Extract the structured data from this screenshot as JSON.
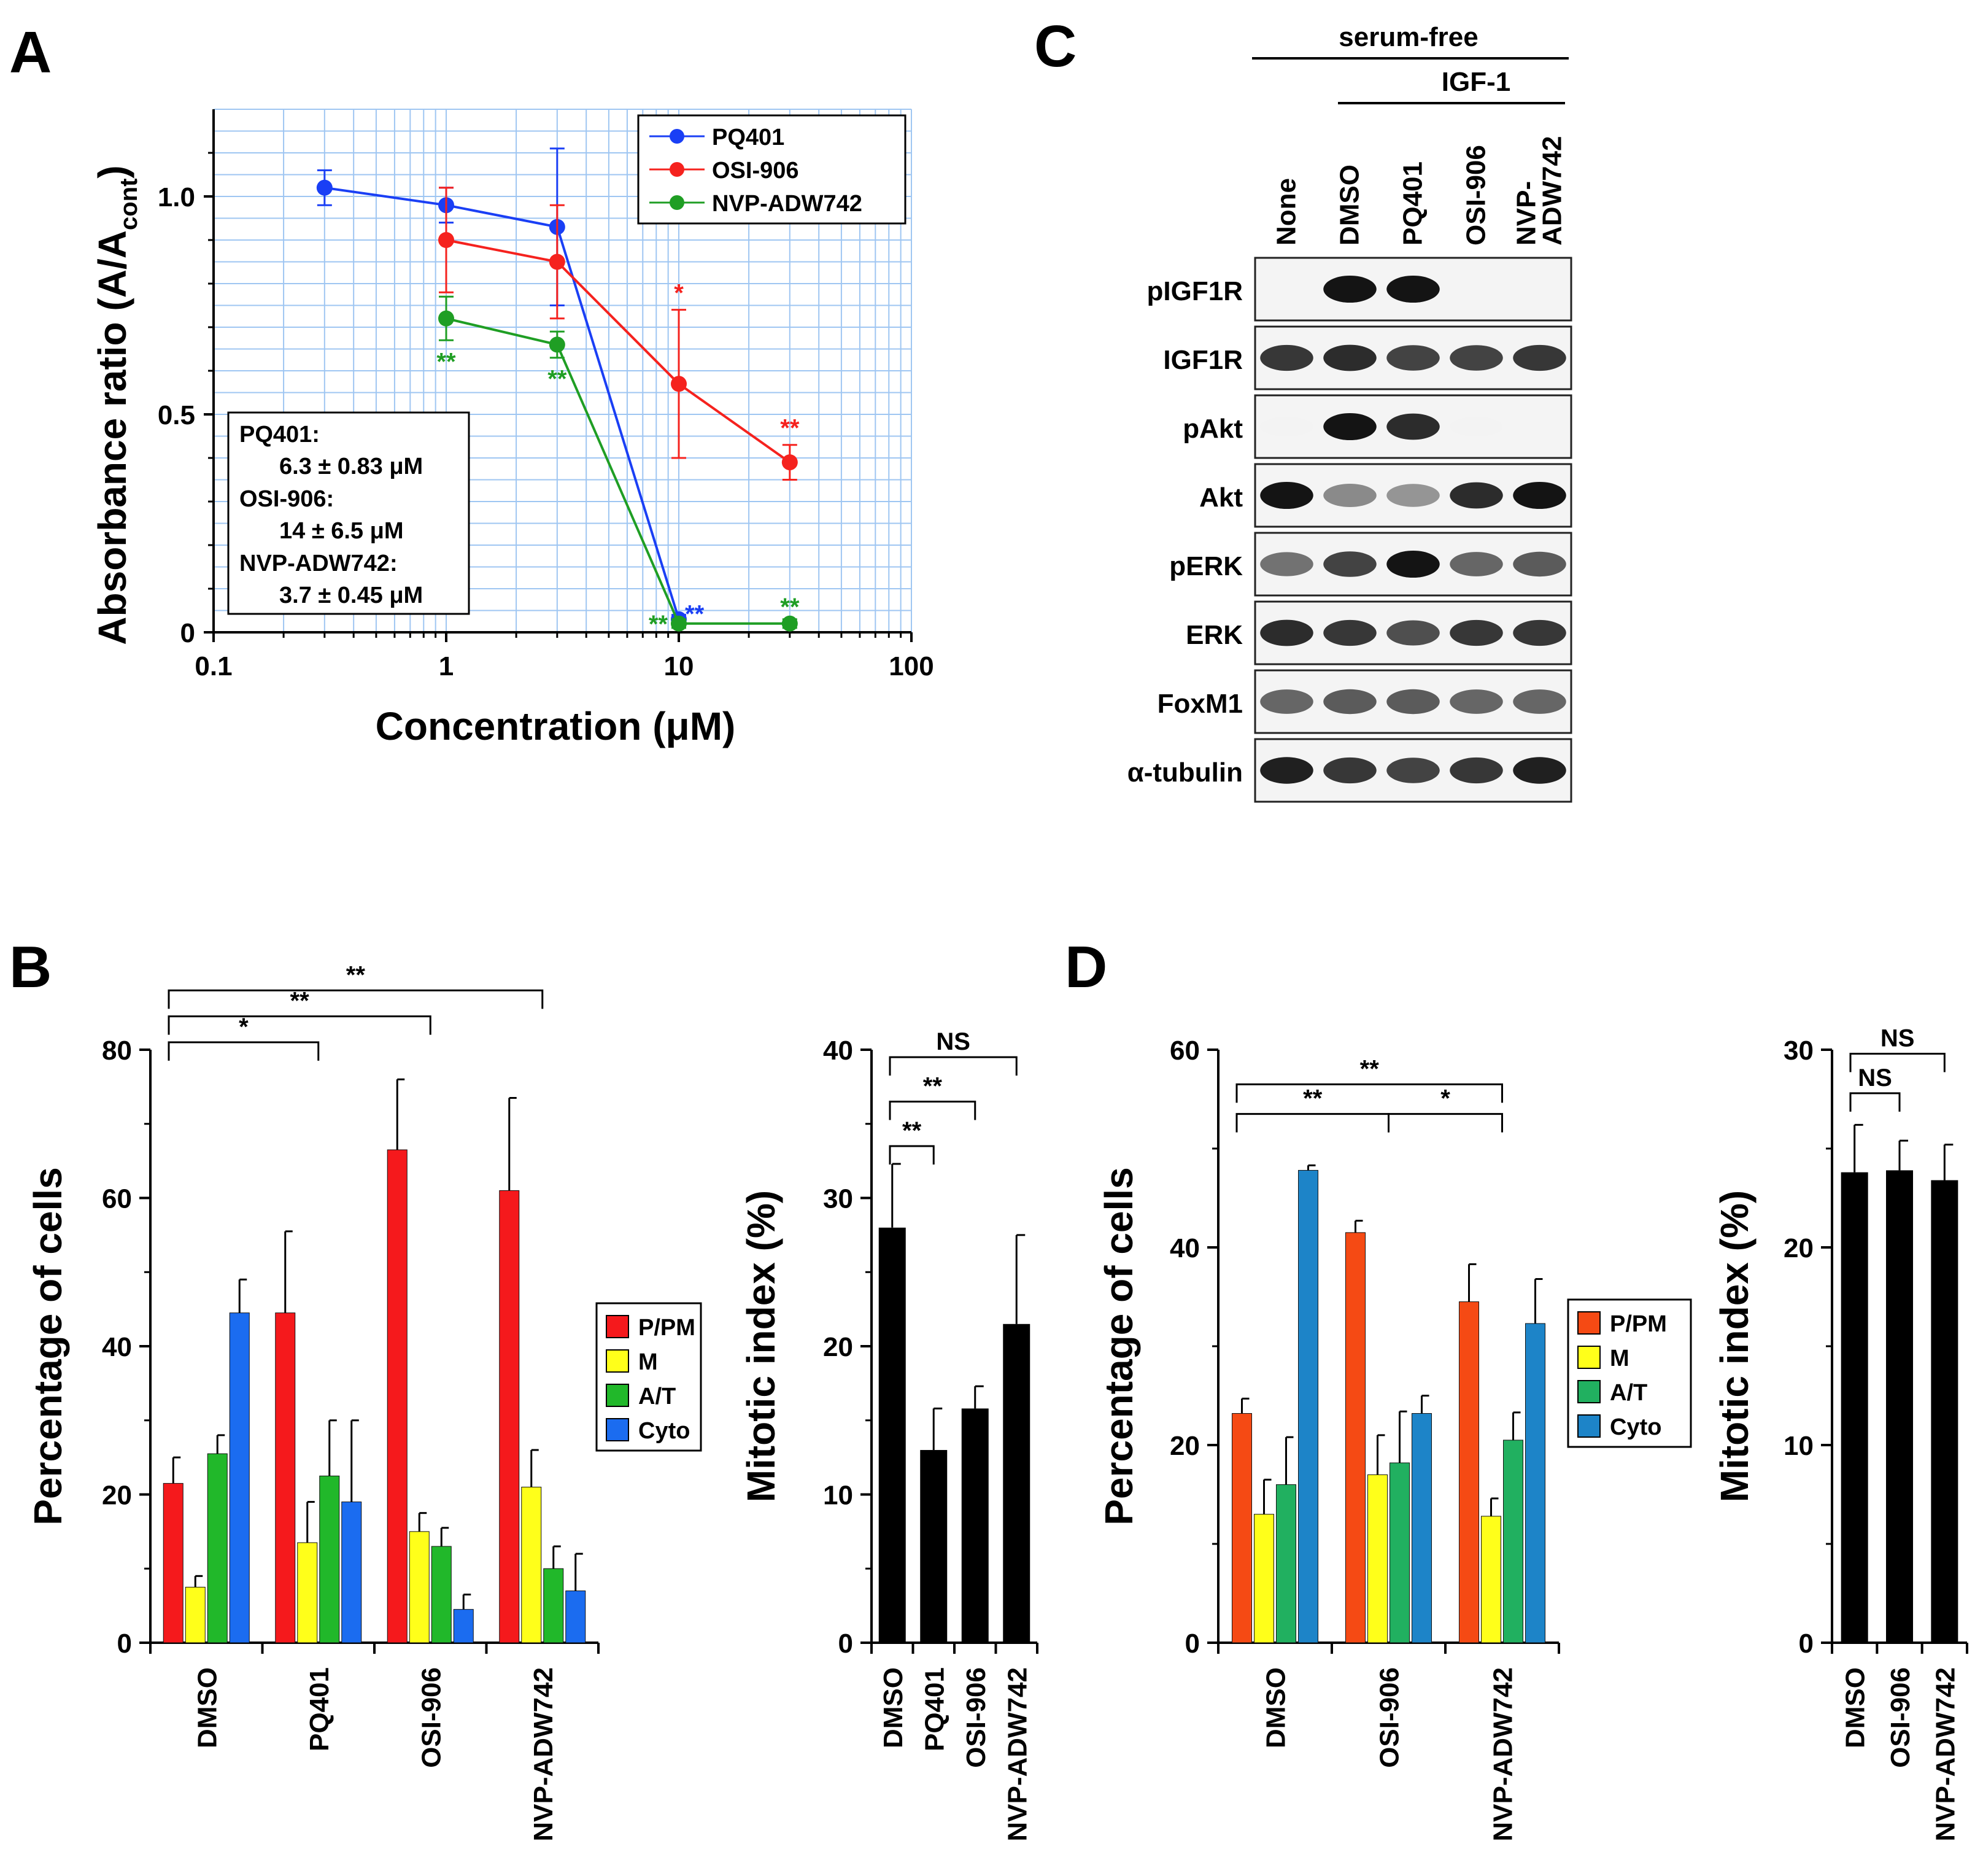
{
  "panels": {
    "A": "A",
    "B": "B",
    "C": "C",
    "D": "D"
  },
  "chart_data": [
    {
      "id": "A",
      "type": "line",
      "xscale": "log",
      "xlabel": "Concentration (μM)",
      "ylabel_main": "Absorbance ratio (A/A",
      "ylabel_sub": "cont",
      "ylabel_end": ")",
      "xlim": [
        0.1,
        100
      ],
      "ylim": [
        0,
        1.2
      ],
      "xticks": [
        {
          "value": 0.1,
          "label": "0.1"
        },
        {
          "value": 1,
          "label": "1"
        },
        {
          "value": 10,
          "label": "10"
        },
        {
          "value": 100,
          "label": "100"
        }
      ],
      "yticks": [
        {
          "value": 0,
          "label": "0"
        },
        {
          "value": 0.5,
          "label": "0.5"
        },
        {
          "value": 1.0,
          "label": "1.0"
        }
      ],
      "grid": true,
      "legend_position": "top-right",
      "series": [
        {
          "name": "PQ401",
          "color": "#1a3ff5",
          "x": [
            0.3,
            1,
            3,
            10
          ],
          "y": [
            1.02,
            0.98,
            0.93,
            0.03
          ],
          "err": [
            0.04,
            0.04,
            0.18,
            0.01
          ],
          "sig": [
            {
              "x": 10,
              "y": 0.03,
              "text": "**"
            }
          ]
        },
        {
          "name": "OSI-906",
          "color": "#f5221e",
          "x": [
            1,
            3,
            10,
            30
          ],
          "y": [
            0.9,
            0.85,
            0.57,
            0.39
          ],
          "err": [
            0.12,
            0.13,
            0.17,
            0.04
          ],
          "sig": [
            {
              "x": 10,
              "y": 0.74,
              "text": "*"
            },
            {
              "x": 30,
              "y": 0.43,
              "text": "**"
            }
          ]
        },
        {
          "name": "NVP-ADW742",
          "color": "#1f9e24",
          "x": [
            1,
            3,
            10,
            30
          ],
          "y": [
            0.72,
            0.66,
            0.02,
            0.02
          ],
          "err": [
            0.05,
            0.03,
            0.01,
            0.01
          ],
          "sig": [
            {
              "x": 1,
              "y": 0.67,
              "text": "**"
            },
            {
              "x": 3,
              "y": 0.63,
              "text": "**"
            },
            {
              "x": 10,
              "y": 0.02,
              "text": "**"
            },
            {
              "x": 30,
              "y": 0.02,
              "text": "**"
            }
          ]
        }
      ],
      "annotation": [
        "PQ401:",
        "6.3 ± 0.83 μM",
        "OSI-906:",
        "14 ± 6.5 μM",
        "NVP-ADW742:",
        "3.7 ± 0.45 μM"
      ]
    },
    {
      "id": "B-left",
      "type": "bar",
      "ylabel": "Percentage of cells",
      "ylim": [
        0,
        80
      ],
      "yticks": [
        0,
        20,
        40,
        60,
        80
      ],
      "categories": [
        "DMSO",
        "PQ401",
        "OSI-906",
        "NVP-ADW742"
      ],
      "series": [
        {
          "name": "P/PM",
          "color": "#f5191c",
          "values": [
            21.5,
            44.5,
            66.5,
            61
          ],
          "err": [
            3.5,
            11,
            9.5,
            12.5
          ]
        },
        {
          "name": "M",
          "color": "#ffff1a",
          "values": [
            7.5,
            13.5,
            15,
            21
          ],
          "err": [
            1.5,
            5.5,
            2.5,
            5
          ]
        },
        {
          "name": "A/T",
          "color": "#21b82a",
          "values": [
            25.5,
            22.5,
            13,
            10
          ],
          "err": [
            2.5,
            7.5,
            2.5,
            3
          ]
        },
        {
          "name": "Cyto",
          "color": "#1b6cf0",
          "values": [
            44.5,
            19,
            4.5,
            7
          ],
          "err": [
            4.5,
            11,
            2,
            5
          ]
        }
      ],
      "legend_position": "right",
      "brackets": [
        {
          "from": 0,
          "to": 1,
          "y": 81,
          "text": "*"
        },
        {
          "from": 0,
          "to": 2,
          "y": 84.5,
          "text": "**"
        },
        {
          "from": 0,
          "to": 3,
          "y": 88,
          "text": "**"
        }
      ]
    },
    {
      "id": "B-right",
      "type": "bar",
      "ylabel": "Mitotic index (%)",
      "ylim": [
        0,
        40
      ],
      "yticks": [
        0,
        10,
        20,
        30,
        40
      ],
      "categories": [
        "DMSO",
        "PQ401",
        "OSI-906",
        "NVP-ADW742"
      ],
      "values": [
        28,
        13,
        15.8,
        21.5
      ],
      "err": [
        4.3,
        2.8,
        1.5,
        6
      ],
      "color": "#000000",
      "brackets": [
        {
          "from": 0,
          "to": 1,
          "y": 33.5,
          "text": "**"
        },
        {
          "from": 0,
          "to": 2,
          "y": 36.5,
          "text": "**"
        },
        {
          "from": 0,
          "to": 3,
          "y": 39.5,
          "text": "NS"
        }
      ]
    },
    {
      "id": "D-left",
      "type": "bar",
      "ylabel": "Percentage of cells",
      "ylim": [
        0,
        60
      ],
      "yticks": [
        0,
        20,
        40,
        60
      ],
      "categories": [
        "DMSO",
        "OSI-906",
        "NVP-ADW742"
      ],
      "series": [
        {
          "name": "P/PM",
          "color": "#f54a14",
          "values": [
            23.2,
            41.5,
            34.5
          ],
          "err": [
            1.5,
            1.2,
            3.8
          ]
        },
        {
          "name": "M",
          "color": "#ffff1a",
          "values": [
            13,
            17,
            12.8
          ],
          "err": [
            3.5,
            4,
            1.8
          ]
        },
        {
          "name": "A/T",
          "color": "#21b060",
          "values": [
            16,
            18.2,
            20.5
          ],
          "err": [
            4.8,
            5.2,
            2.8
          ]
        },
        {
          "name": "Cyto",
          "color": "#1d84c8",
          "values": [
            47.8,
            23.2,
            32.3
          ],
          "err": [
            0.5,
            1.8,
            4.5
          ]
        }
      ],
      "legend_position": "right",
      "brackets": [
        {
          "from": 0,
          "to": 1,
          "y": 53.5,
          "text": "**"
        },
        {
          "from": 1,
          "to": 2,
          "y": 53.5,
          "text": "*"
        },
        {
          "from": 0,
          "to": 2,
          "y": 56.5,
          "text": "**"
        }
      ]
    },
    {
      "id": "D-right",
      "type": "bar",
      "ylabel": "Mitotic index (%)",
      "ylim": [
        0,
        30
      ],
      "yticks": [
        0,
        10,
        20,
        30
      ],
      "categories": [
        "DMSO",
        "OSI-906",
        "NVP-ADW742"
      ],
      "values": [
        23.8,
        23.9,
        23.4
      ],
      "err": [
        2.4,
        1.5,
        1.8
      ],
      "color": "#000000",
      "brackets": [
        {
          "from": 0,
          "to": 1,
          "y": 27.8,
          "text": "NS"
        },
        {
          "from": 0,
          "to": 2,
          "y": 29.8,
          "text": "NS"
        }
      ]
    }
  ],
  "blot": {
    "header_top": "serum-free",
    "header_sub": "IGF-1",
    "lanes": [
      "None",
      "DMSO",
      "PQ401",
      "OSI-906",
      "NVP-\nADW742"
    ],
    "rows": [
      {
        "label": "pIGF1R",
        "intensity": [
          0,
          1,
          1,
          0,
          0
        ]
      },
      {
        "label": "IGF1R",
        "intensity": [
          0.85,
          0.9,
          0.8,
          0.8,
          0.85
        ]
      },
      {
        "label": "pAkt",
        "intensity": [
          0.05,
          1,
          0.9,
          0.05,
          0
        ]
      },
      {
        "label": "Akt",
        "intensity": [
          1,
          0.5,
          0.45,
          0.9,
          1
        ]
      },
      {
        "label": "pERK",
        "intensity": [
          0.6,
          0.8,
          1,
          0.65,
          0.7
        ]
      },
      {
        "label": "ERK",
        "intensity": [
          0.9,
          0.85,
          0.75,
          0.85,
          0.85
        ]
      },
      {
        "label": "FoxM1",
        "intensity": [
          0.65,
          0.7,
          0.7,
          0.65,
          0.65
        ]
      },
      {
        "label": "α-tubulin",
        "intensity": [
          0.95,
          0.85,
          0.8,
          0.85,
          0.95
        ]
      }
    ]
  }
}
